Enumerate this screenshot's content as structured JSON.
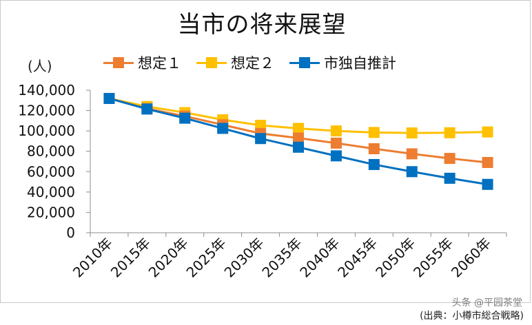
{
  "chart_data": {
    "type": "line",
    "title": "当市の将来展望",
    "ylabel": "(人)",
    "ylim": [
      0,
      140000
    ],
    "yticks": [
      0,
      20000,
      40000,
      60000,
      80000,
      100000,
      120000,
      140000
    ],
    "ytick_labels": [
      "0",
      "20,000",
      "40,000",
      "60,000",
      "80,000",
      "100,000",
      "120,000",
      "140,000"
    ],
    "categories": [
      "2010年",
      "2015年",
      "2020年",
      "2025年",
      "2030年",
      "2035年",
      "2040年",
      "2045年",
      "2050年",
      "2055年",
      "2060年"
    ],
    "legend_position": "top",
    "grid": false,
    "series": [
      {
        "name": "想定１",
        "color": "#ED7D31",
        "values": [
          131900,
          121900,
          114500,
          106000,
          97500,
          93000,
          88000,
          82500,
          77500,
          73000,
          69000
        ]
      },
      {
        "name": "想定２",
        "color": "#FFC000",
        "values": [
          131900,
          124000,
          118000,
          111000,
          105500,
          102500,
          100000,
          98500,
          98000,
          98200,
          99000
        ]
      },
      {
        "name": "市独自推計",
        "color": "#0070C0",
        "values": [
          131900,
          121500,
          112500,
          102500,
          92500,
          84000,
          75500,
          67000,
          60000,
          53500,
          47500
        ]
      }
    ]
  },
  "footer": {
    "watermark": "头条 @平园茶堂",
    "source": "(出典：小樽市総合戦略)"
  }
}
